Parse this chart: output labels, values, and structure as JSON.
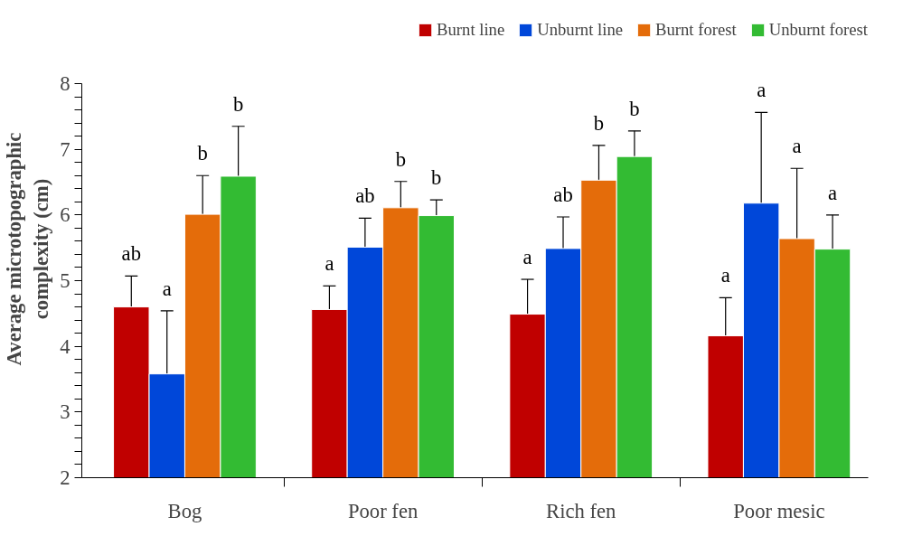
{
  "chart_data": {
    "type": "bar",
    "ylabel": "Average microtopographic\ncomplexity (cm)",
    "categories": [
      "Bog",
      "Poor fen",
      "Rich fen",
      "Poor mesic"
    ],
    "series": [
      {
        "name": "Burnt line",
        "color": "#c00000",
        "values": [
          4.6,
          4.56,
          4.49,
          4.16
        ],
        "errors": [
          0.47,
          0.36,
          0.53,
          0.58
        ]
      },
      {
        "name": "Unburnt line",
        "color": "#0047d9",
        "values": [
          3.58,
          5.51,
          5.49,
          6.18
        ],
        "errors": [
          0.96,
          0.44,
          0.48,
          1.38
        ]
      },
      {
        "name": "Burnt forest",
        "color": "#e46c0a",
        "values": [
          6.01,
          6.11,
          6.53,
          5.64
        ],
        "errors": [
          0.59,
          0.4,
          0.53,
          1.07
        ]
      },
      {
        "name": "Unburnt forest",
        "color": "#33bb33",
        "values": [
          6.59,
          5.99,
          6.89,
          5.48
        ],
        "errors": [
          0.76,
          0.24,
          0.39,
          0.52
        ]
      }
    ],
    "annotations": [
      "ab",
      "a",
      "b",
      "b",
      "a",
      "ab",
      "b",
      "b",
      "a",
      "ab",
      "b",
      "b",
      "a",
      "a",
      "a",
      "a"
    ],
    "ylim": [
      2,
      8
    ],
    "yticks": [
      2,
      {
        "value": 2.2,
        "label": null
      },
      {
        "value": 2.4,
        "label": null
      },
      {
        "value": 2.6,
        "label": null
      },
      {
        "value": 2.8,
        "label": null
      },
      3,
      {
        "value": 3.2,
        "label": null
      },
      {
        "value": 3.4,
        "label": null
      },
      {
        "value": 3.6,
        "label": null
      },
      {
        "value": 3.8,
        "label": null
      },
      4,
      {
        "value": 4.2,
        "label": null
      },
      {
        "value": 4.4,
        "label": null
      },
      {
        "value": 4.6,
        "label": null
      },
      {
        "value": 4.8,
        "label": null
      },
      5,
      {
        "value": 5.2,
        "label": null
      },
      {
        "value": 5.4,
        "label": null
      },
      {
        "value": 5.6,
        "label": null
      },
      {
        "value": 5.8,
        "label": null
      },
      6,
      {
        "value": 6.2,
        "label": null
      },
      {
        "value": 6.4,
        "label": null
      },
      {
        "value": 6.6,
        "label": null
      },
      {
        "value": 6.8,
        "label": null
      },
      7,
      {
        "value": 7.2,
        "label": null
      },
      {
        "value": 7.4,
        "label": null
      },
      {
        "value": 7.6,
        "label": null
      },
      {
        "value": 7.8,
        "label": null
      },
      8
    ],
    "grid": false,
    "legend": "top"
  }
}
